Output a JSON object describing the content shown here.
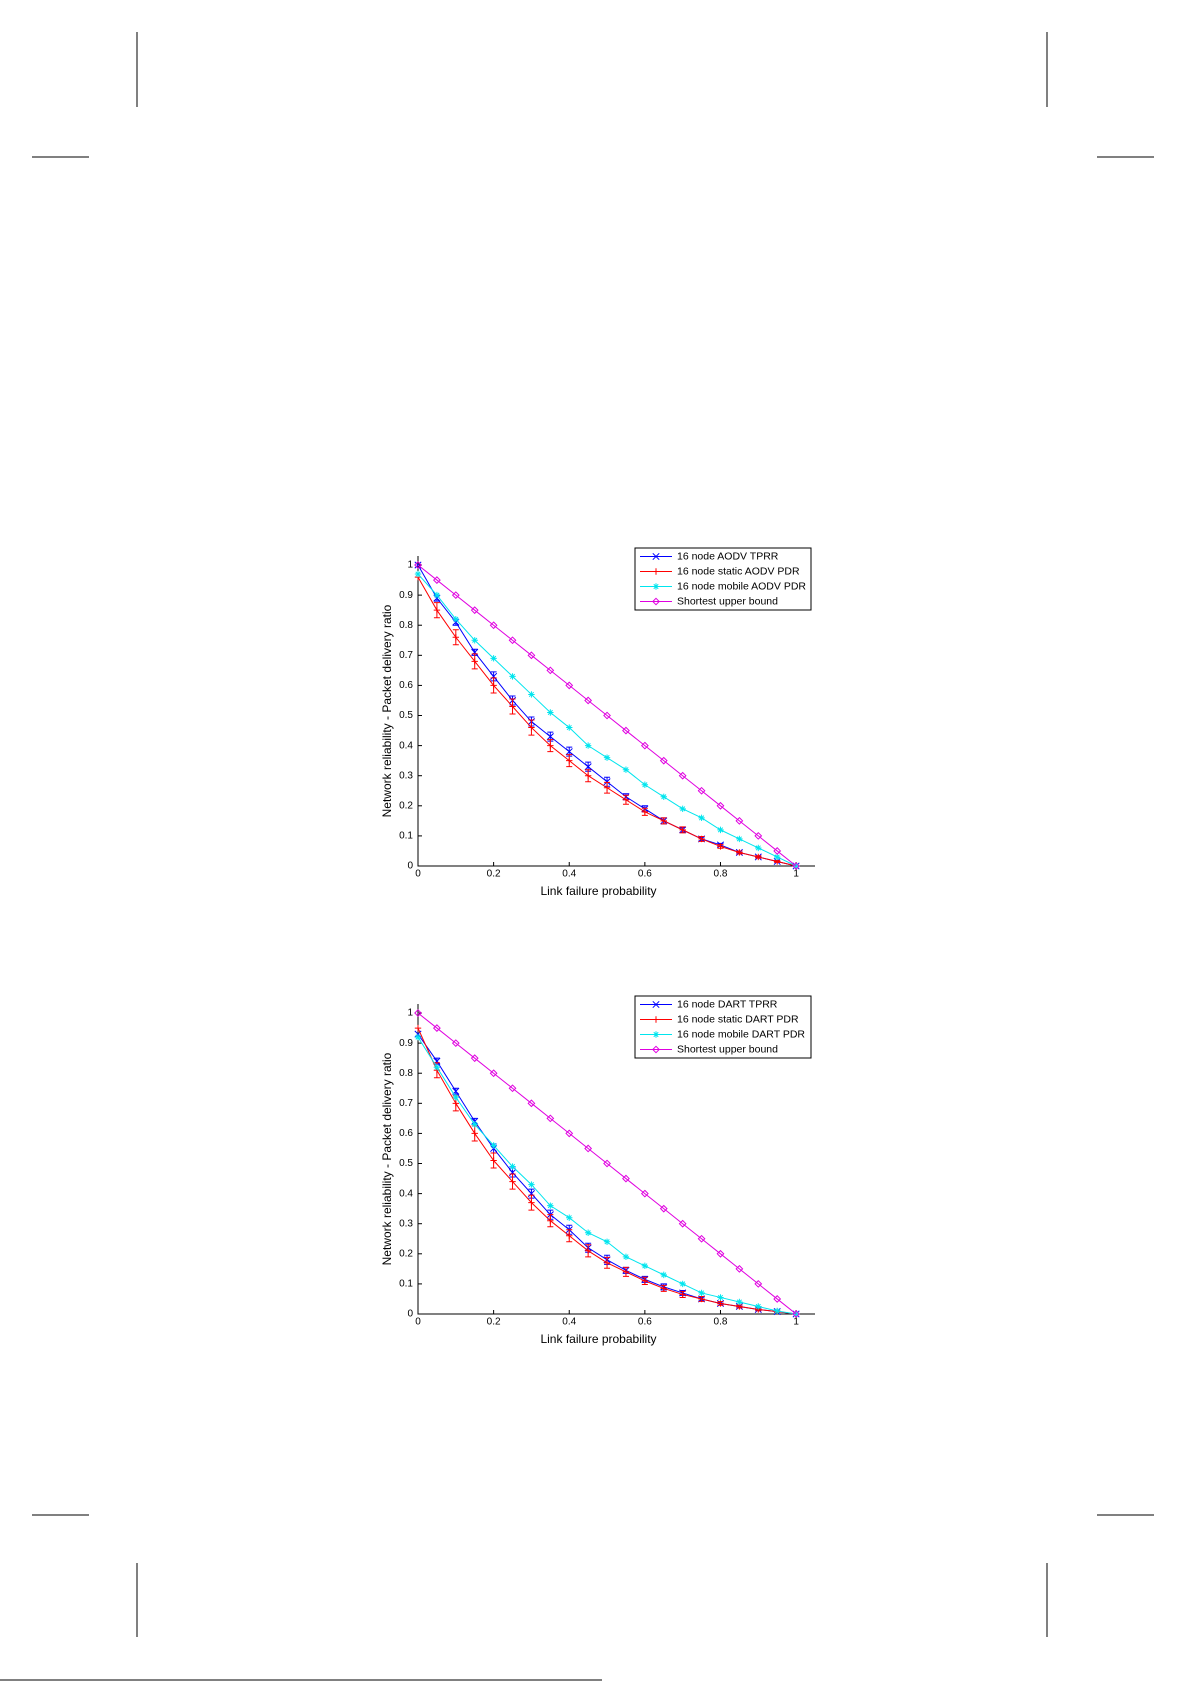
{
  "chart_data": [
    {
      "type": "line",
      "xlabel": "Link failure probability",
      "ylabel": "Network reliability - Packet delivery ratio",
      "x": [
        0,
        0.05,
        0.1,
        0.15,
        0.2,
        0.25,
        0.3,
        0.35,
        0.4,
        0.45,
        0.5,
        0.55,
        0.6,
        0.65,
        0.7,
        0.75,
        0.8,
        0.85,
        0.9,
        0.95,
        1
      ],
      "xlim": [
        0,
        1.05
      ],
      "ylim": [
        0,
        1.03
      ],
      "xticks": [
        0,
        0.2,
        0.4,
        0.6,
        0.8,
        1
      ],
      "yticks": [
        0,
        0.1,
        0.2,
        0.3,
        0.4,
        0.5,
        0.6,
        0.7,
        0.8,
        0.9,
        1
      ],
      "legend": "upper right",
      "series": [
        {
          "name": "16 node AODV TPRR",
          "color": "#0000ff",
          "marker": "x",
          "values": [
            1,
            0.89,
            0.81,
            0.71,
            0.63,
            0.55,
            0.48,
            0.43,
            0.38,
            0.33,
            0.28,
            0.23,
            0.19,
            0.15,
            0.12,
            0.09,
            0.07,
            0.045,
            0.03,
            0.015,
            0
          ],
          "errors": [
            0,
            0.01,
            0.01,
            0.01,
            0.015,
            0.015,
            0.015,
            0.015,
            0.015,
            0.015,
            0.015,
            0.01,
            0.01,
            0.01,
            0.008,
            0.006,
            0.005,
            0.004,
            0.003,
            0.002,
            0
          ]
        },
        {
          "name": "16 node static AODV PDR",
          "color": "#ff0000",
          "marker": "+",
          "values": [
            0.96,
            0.85,
            0.76,
            0.68,
            0.6,
            0.53,
            0.46,
            0.4,
            0.35,
            0.3,
            0.26,
            0.22,
            0.18,
            0.15,
            0.12,
            0.09,
            0.065,
            0.045,
            0.03,
            0.015,
            0
          ],
          "errors": [
            0,
            0.025,
            0.025,
            0.025,
            0.025,
            0.025,
            0.025,
            0.02,
            0.02,
            0.02,
            0.018,
            0.015,
            0.012,
            0.01,
            0.01,
            0.008,
            0.006,
            0.005,
            0.004,
            0.003,
            0
          ]
        },
        {
          "name": "16 node mobile AODV PDR",
          "color": "#00e5ee",
          "marker": "*",
          "values": [
            0.97,
            0.9,
            0.82,
            0.75,
            0.69,
            0.63,
            0.57,
            0.51,
            0.46,
            0.4,
            0.36,
            0.32,
            0.27,
            0.23,
            0.19,
            0.16,
            0.12,
            0.09,
            0.06,
            0.03,
            0
          ]
        },
        {
          "name": "Shortest upper bound",
          "color": "#e000e0",
          "marker": "d",
          "values": [
            1,
            0.95,
            0.9,
            0.85,
            0.8,
            0.75,
            0.7,
            0.65,
            0.6,
            0.55,
            0.5,
            0.45,
            0.4,
            0.35,
            0.3,
            0.25,
            0.2,
            0.15,
            0.1,
            0.05,
            0
          ]
        }
      ]
    },
    {
      "type": "line",
      "xlabel": "Link failure probability",
      "ylabel": "Network reliability - Packet delivery ratio",
      "x": [
        0,
        0.05,
        0.1,
        0.15,
        0.2,
        0.25,
        0.3,
        0.35,
        0.4,
        0.45,
        0.5,
        0.55,
        0.6,
        0.65,
        0.7,
        0.75,
        0.8,
        0.85,
        0.9,
        0.95,
        1
      ],
      "xlim": [
        0,
        1.05
      ],
      "ylim": [
        0,
        1.03
      ],
      "xticks": [
        0,
        0.2,
        0.4,
        0.6,
        0.8,
        1
      ],
      "yticks": [
        0,
        0.1,
        0.2,
        0.3,
        0.4,
        0.5,
        0.6,
        0.7,
        0.8,
        0.9,
        1
      ],
      "legend": "upper right",
      "series": [
        {
          "name": "16 node DART TPRR",
          "color": "#0000ff",
          "marker": "x",
          "values": [
            0.93,
            0.84,
            0.74,
            0.64,
            0.55,
            0.47,
            0.4,
            0.33,
            0.28,
            0.22,
            0.18,
            0.145,
            0.115,
            0.09,
            0.07,
            0.05,
            0.035,
            0.025,
            0.015,
            0.008,
            0
          ],
          "errors": [
            0,
            0.01,
            0.01,
            0.01,
            0.015,
            0.015,
            0.015,
            0.015,
            0.015,
            0.015,
            0.015,
            0.01,
            0.01,
            0.01,
            0.008,
            0.006,
            0.005,
            0.004,
            0.003,
            0.002,
            0
          ]
        },
        {
          "name": "16 node static DART PDR",
          "color": "#ff0000",
          "marker": "+",
          "values": [
            0.95,
            0.81,
            0.7,
            0.6,
            0.51,
            0.44,
            0.37,
            0.31,
            0.26,
            0.21,
            0.17,
            0.14,
            0.11,
            0.085,
            0.065,
            0.05,
            0.035,
            0.025,
            0.015,
            0.008,
            0
          ],
          "errors": [
            0,
            0.025,
            0.025,
            0.025,
            0.025,
            0.025,
            0.025,
            0.02,
            0.02,
            0.02,
            0.018,
            0.015,
            0.012,
            0.01,
            0.01,
            0.008,
            0.006,
            0.005,
            0.004,
            0.003,
            0
          ]
        },
        {
          "name": "16 node mobile DART PDR",
          "color": "#00e5ee",
          "marker": "*",
          "values": [
            0.92,
            0.82,
            0.72,
            0.63,
            0.56,
            0.49,
            0.43,
            0.36,
            0.32,
            0.27,
            0.24,
            0.19,
            0.16,
            0.13,
            0.1,
            0.07,
            0.055,
            0.04,
            0.025,
            0.01,
            0
          ]
        },
        {
          "name": "Shortest upper bound",
          "color": "#e000e0",
          "marker": "d",
          "values": [
            1,
            0.95,
            0.9,
            0.85,
            0.8,
            0.75,
            0.7,
            0.65,
            0.6,
            0.55,
            0.5,
            0.45,
            0.4,
            0.35,
            0.3,
            0.25,
            0.2,
            0.15,
            0.1,
            0.05,
            0
          ]
        }
      ]
    }
  ]
}
